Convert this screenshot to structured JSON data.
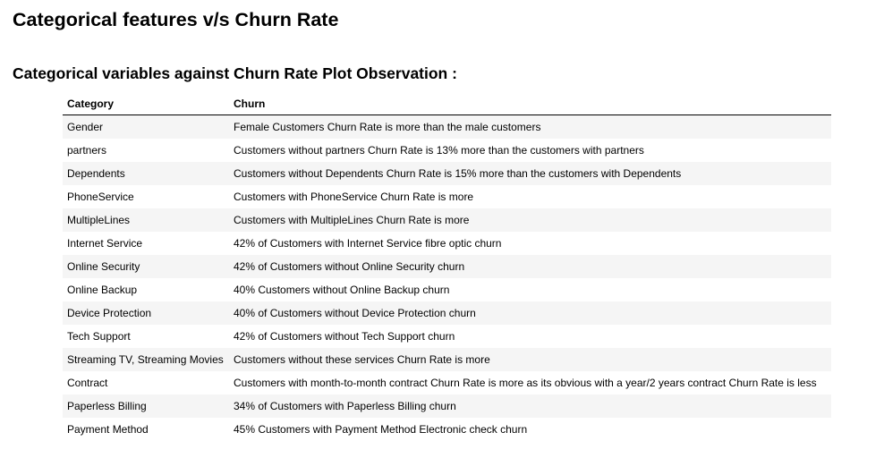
{
  "page": {
    "title": "Categorical features v/s Churn Rate",
    "subtitle": "Categorical variables against Churn Rate Plot Observation :"
  },
  "table": {
    "headers": [
      "Category",
      "Churn"
    ],
    "rows": [
      [
        "Gender",
        "Female Customers Churn Rate is more than the male customers"
      ],
      [
        "partners",
        "Customers without partners Churn Rate is 13% more than the customers with partners"
      ],
      [
        "Dependents",
        "Customers without Dependents Churn Rate is 15% more than the customers with Dependents"
      ],
      [
        "PhoneService",
        "Customers with PhoneService Churn Rate is more"
      ],
      [
        "MultipleLines",
        "Customers with MultipleLines Churn Rate is more"
      ],
      [
        "Internet Service",
        "42% of Customers with Internet Service fibre optic churn"
      ],
      [
        "Online Security",
        "42% of Customers without Online Security churn"
      ],
      [
        "Online Backup",
        "40% Customers without Online Backup churn"
      ],
      [
        "Device Protection",
        "40% of Customers without Device Protection churn"
      ],
      [
        "Tech Support",
        "42% of Customers without Tech Support churn"
      ],
      [
        "Streaming TV, Streaming Movies",
        "Customers without these services Churn Rate is more"
      ],
      [
        "Contract",
        "Customers with month-to-month contract Churn Rate is more as its obvious with a year/2 years contract Churn Rate is less"
      ],
      [
        "Paperless Billing",
        "34% of Customers with Paperless Billing churn"
      ],
      [
        "Payment Method",
        "45% Customers with Payment Method Electronic check churn"
      ]
    ]
  }
}
